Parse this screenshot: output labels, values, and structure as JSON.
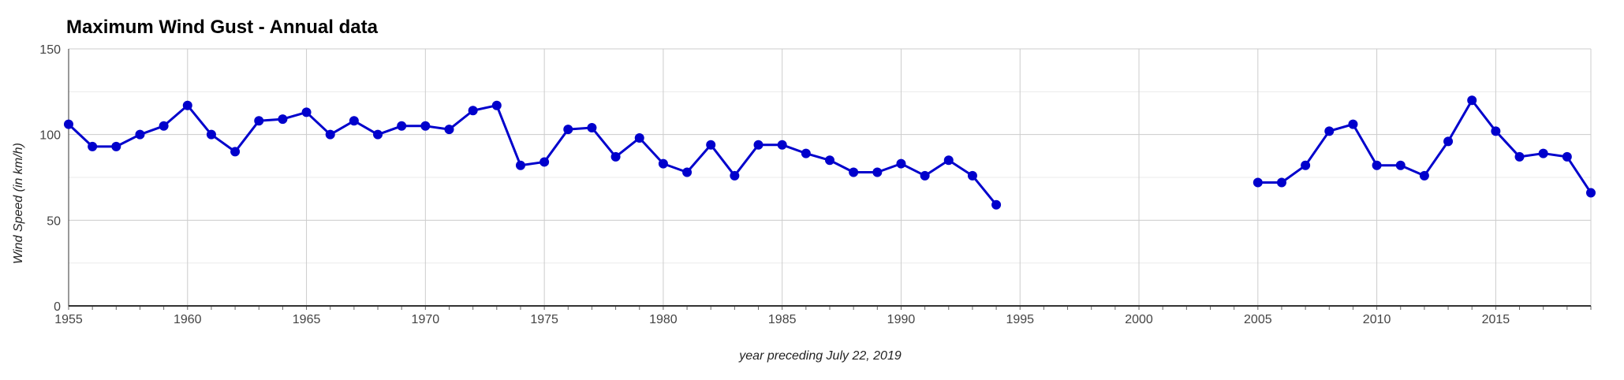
{
  "chart_data": {
    "type": "line",
    "title": "Maximum Wind Gust - Annual data",
    "xlabel": "year preceding July 22, 2019",
    "ylabel": "Wind Speed (in km/h)",
    "xlim": [
      1955,
      2019
    ],
    "ylim": [
      0,
      150
    ],
    "x_ticks": [
      1955,
      1960,
      1965,
      1970,
      1975,
      1980,
      1985,
      1990,
      1995,
      2000,
      2005,
      2010,
      2015
    ],
    "y_ticks": [
      0,
      50,
      100,
      150
    ],
    "grid": true,
    "colors": {
      "series": "#0000cc",
      "grid_major": "#cccccc",
      "grid_minor": "#ebebeb",
      "axis": "#333333"
    },
    "series": [
      {
        "points": [
          [
            1955,
            106
          ],
          [
            1956,
            93
          ],
          [
            1957,
            93
          ],
          [
            1958,
            100
          ],
          [
            1959,
            105
          ],
          [
            1960,
            117
          ],
          [
            1961,
            100
          ],
          [
            1962,
            90
          ],
          [
            1963,
            108
          ],
          [
            1964,
            109
          ],
          [
            1965,
            113
          ],
          [
            1966,
            100
          ],
          [
            1967,
            108
          ],
          [
            1968,
            100
          ],
          [
            1969,
            105
          ],
          [
            1970,
            105
          ],
          [
            1971,
            103
          ],
          [
            1972,
            114
          ],
          [
            1973,
            117
          ],
          [
            1974,
            82
          ],
          [
            1975,
            84
          ],
          [
            1976,
            103
          ],
          [
            1977,
            104
          ],
          [
            1978,
            87
          ],
          [
            1979,
            98
          ],
          [
            1980,
            83
          ],
          [
            1981,
            78
          ],
          [
            1982,
            94
          ],
          [
            1983,
            76
          ],
          [
            1984,
            94
          ],
          [
            1985,
            94
          ],
          [
            1986,
            89
          ],
          [
            1987,
            85
          ],
          [
            1988,
            78
          ],
          [
            1989,
            78
          ],
          [
            1990,
            83
          ],
          [
            1991,
            76
          ],
          [
            1992,
            85
          ],
          [
            1993,
            76
          ],
          [
            1994,
            59
          ],
          [
            1995,
            null
          ],
          [
            1996,
            null
          ],
          [
            1997,
            null
          ],
          [
            1998,
            null
          ],
          [
            1999,
            null
          ],
          [
            2000,
            null
          ],
          [
            2001,
            null
          ],
          [
            2002,
            null
          ],
          [
            2003,
            null
          ],
          [
            2004,
            null
          ],
          [
            2005,
            72
          ],
          [
            2006,
            72
          ],
          [
            2007,
            82
          ],
          [
            2008,
            102
          ],
          [
            2009,
            106
          ],
          [
            2010,
            82
          ],
          [
            2011,
            82
          ],
          [
            2012,
            76
          ],
          [
            2013,
            96
          ],
          [
            2014,
            120
          ],
          [
            2015,
            102
          ],
          [
            2016,
            87
          ],
          [
            2017,
            89
          ],
          [
            2018,
            87
          ],
          [
            2019,
            66
          ]
        ]
      }
    ]
  }
}
